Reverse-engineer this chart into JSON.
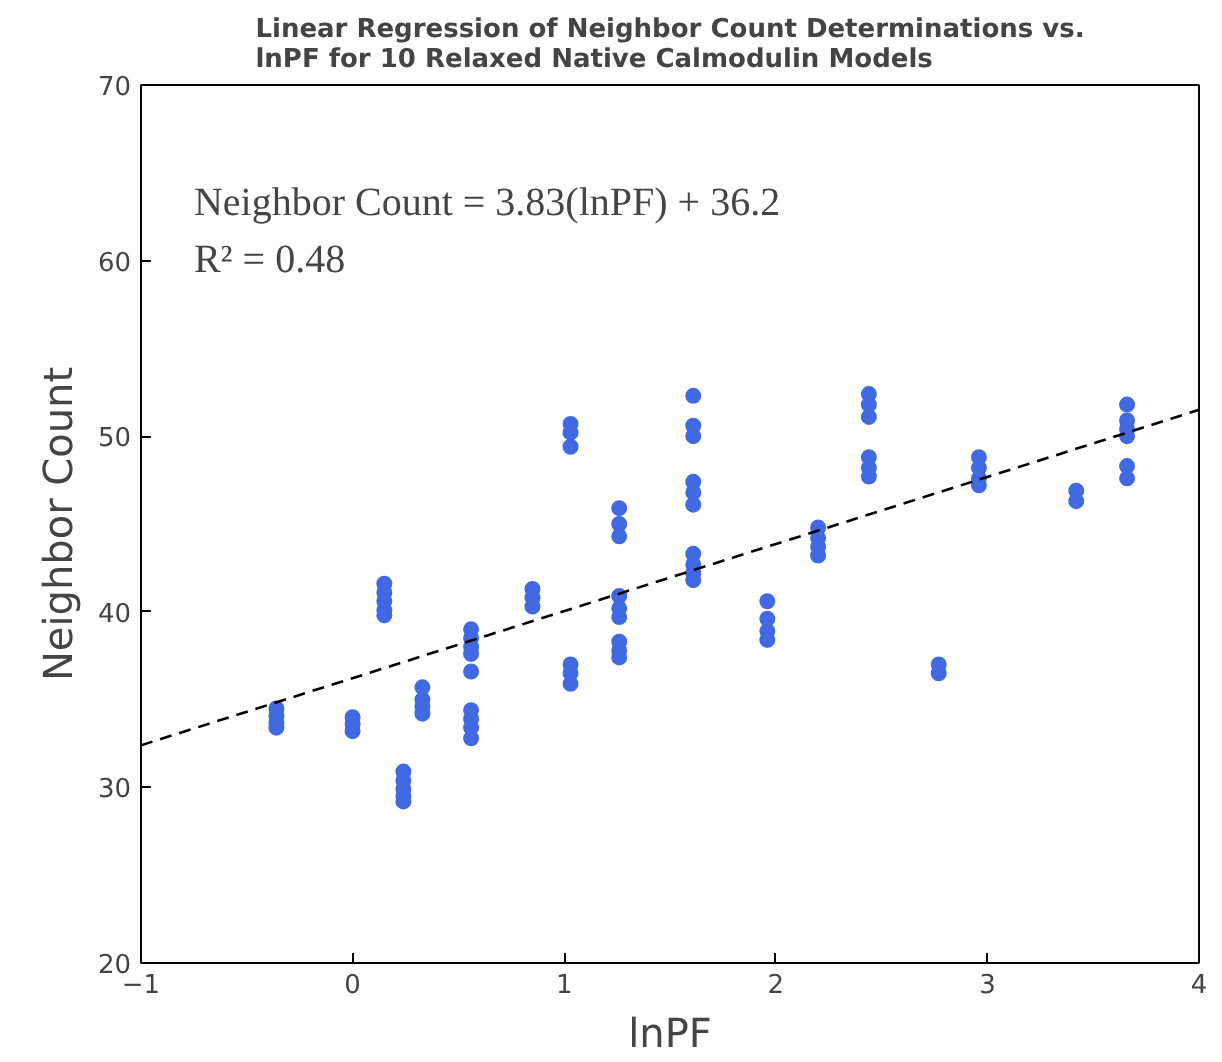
{
  "chart_data": {
    "type": "scatter",
    "title": "Linear Regression of Neighbor Count Determinations vs.\nlnPF for 10 Relaxed Native Calmodulin Models",
    "xlabel": "lnPF",
    "ylabel": "Neighbor Count",
    "annotations": [
      "Neighbor Count = 3.83(lnPF) + 36.2",
      "R² = 0.48"
    ],
    "xlim": [
      -1,
      4
    ],
    "ylim": [
      20,
      70
    ],
    "xticks": [
      -1,
      0,
      1,
      2,
      3,
      4
    ],
    "yticks": [
      20,
      30,
      40,
      50,
      60,
      70
    ],
    "grid": false,
    "series": [
      {
        "color": "#4169e1",
        "marker": "circle",
        "x": [
          -0.36,
          -0.36,
          -0.36,
          -0.36,
          0.0,
          0.0,
          0.0,
          0.15,
          0.15,
          0.15,
          0.15,
          0.15,
          0.24,
          0.24,
          0.24,
          0.24,
          0.24,
          0.33,
          0.33,
          0.33,
          0.33,
          0.56,
          0.56,
          0.56,
          0.56,
          0.56,
          0.56,
          0.56,
          0.56,
          0.56,
          0.85,
          0.85,
          0.85,
          1.03,
          1.03,
          1.03,
          1.03,
          1.03,
          1.03,
          1.26,
          1.26,
          1.26,
          1.26,
          1.26,
          1.26,
          1.26,
          1.26,
          1.26,
          1.61,
          1.61,
          1.61,
          1.61,
          1.61,
          1.61,
          1.61,
          1.61,
          1.61,
          1.61,
          1.96,
          1.96,
          1.96,
          1.96,
          2.2,
          2.2,
          2.2,
          2.2,
          2.44,
          2.44,
          2.44,
          2.44,
          2.44,
          2.44,
          2.77,
          2.77,
          2.96,
          2.96,
          2.96,
          2.96,
          3.42,
          3.42,
          3.66,
          3.66,
          3.66,
          3.66,
          3.66,
          3.66
        ],
        "values": [
          34.5,
          34.1,
          33.7,
          33.4,
          34.0,
          33.6,
          33.2,
          41.6,
          41.1,
          40.6,
          40.1,
          39.8,
          30.9,
          30.4,
          29.9,
          29.5,
          29.2,
          35.7,
          35.0,
          34.6,
          34.2,
          39.0,
          38.5,
          38.0,
          37.6,
          36.6,
          34.4,
          33.9,
          33.4,
          32.8,
          41.3,
          40.8,
          40.3,
          50.7,
          50.2,
          49.4,
          37.0,
          36.5,
          35.9,
          45.9,
          45.0,
          44.3,
          40.9,
          40.2,
          39.7,
          38.3,
          37.8,
          37.4,
          52.3,
          50.6,
          50.0,
          47.4,
          46.8,
          46.1,
          43.3,
          42.7,
          42.2,
          41.8,
          40.6,
          39.6,
          38.9,
          38.4,
          44.8,
          44.2,
          43.7,
          43.2,
          52.4,
          51.8,
          51.1,
          48.8,
          48.2,
          47.7,
          37.0,
          36.5,
          48.8,
          48.2,
          47.6,
          47.2,
          46.9,
          46.3,
          51.8,
          50.9,
          50.4,
          50.0,
          48.3,
          47.6
        ]
      },
      {
        "type": "line",
        "color": "#000000",
        "line_style": "dashed",
        "marker": "none",
        "x": [
          -1,
          4
        ],
        "values": [
          32.4,
          51.5
        ]
      }
    ]
  }
}
